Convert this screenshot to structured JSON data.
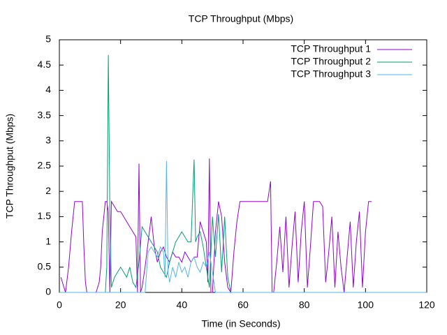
{
  "chart_data": {
    "type": "line",
    "title": "TCP Throughput (Mbps)",
    "x_label": "Time (in Seconds)",
    "y_label": "TCP Throughput (Mbps)",
    "xlim": [
      0,
      120
    ],
    "ylim": [
      0,
      5
    ],
    "xticks": [
      0,
      20,
      40,
      60,
      80,
      100,
      120
    ],
    "yticks": [
      0,
      0.5,
      1,
      1.5,
      2,
      2.5,
      3,
      3.5,
      4,
      4.5,
      5
    ],
    "legend": "upper-right",
    "series": [
      {
        "name": "TCP Throughput 1",
        "color": "#9400d3",
        "x": [
          0.5,
          1,
          1.5,
          2,
          3,
          4,
          5,
          6,
          7,
          7.5,
          8,
          8.5,
          9,
          10,
          11,
          12,
          13,
          13.5,
          14,
          15,
          15.5,
          16,
          16.5,
          17,
          18,
          19,
          20,
          21,
          22,
          23,
          24,
          25,
          25.5,
          26,
          26.5,
          27,
          28,
          29,
          30,
          31,
          32,
          33,
          34,
          35,
          36,
          37,
          38,
          39,
          40,
          41,
          42,
          43,
          44,
          45,
          46,
          47,
          48,
          48.5,
          49,
          49.5,
          50,
          51,
          52,
          53,
          54,
          55,
          56,
          57,
          58,
          59,
          60,
          62,
          64,
          66,
          68,
          69,
          69.5,
          70,
          71,
          72,
          73,
          74,
          75,
          76,
          77,
          78,
          79,
          80,
          81,
          82,
          83,
          84,
          85,
          86,
          87,
          88,
          89,
          90,
          91,
          92,
          93,
          94,
          95,
          96,
          97,
          98,
          99,
          100,
          101,
          102
        ],
        "values": [
          0.3,
          0.2,
          0.1,
          0,
          0.5,
          1.2,
          1.8,
          1.8,
          1.8,
          1.8,
          0.9,
          0.2,
          0,
          0,
          0,
          0,
          0.2,
          0.5,
          1.2,
          1.8,
          1.8,
          1.6,
          0,
          1.8,
          1.7,
          1.6,
          1.6,
          1.5,
          1.4,
          1.3,
          1.2,
          1.1,
          0,
          2.55,
          0,
          0.1,
          0.5,
          1.0,
          1.5,
          0.9,
          0.6,
          0.8,
          0.9,
          0.7,
          0.6,
          0.8,
          0.7,
          0.7,
          0.6,
          0.8,
          0.7,
          0.6,
          0.7,
          0.7,
          1.4,
          1.2,
          1.0,
          0.2,
          2.65,
          0,
          0,
          1.2,
          1.8,
          1.5,
          0.6,
          0.1,
          0,
          0.8,
          1.4,
          1.8,
          1.8,
          1.8,
          1.8,
          1.8,
          1.8,
          2.2,
          0,
          0,
          0.6,
          1.3,
          0.4,
          1.5,
          0.1,
          0.9,
          1.6,
          0.2,
          1.2,
          1.8,
          0.1,
          0.9,
          1.8,
          1.8,
          1.8,
          1.7,
          0.2,
          0.8,
          1.5,
          0.1,
          1.2,
          0.5,
          0,
          0.7,
          1.4,
          0.1,
          1.0,
          1.6,
          0.1,
          1.2,
          1.8,
          1.8
        ]
      },
      {
        "name": "TCP Throughput 2",
        "color": "#009e73",
        "x": [
          0,
          15,
          15.5,
          16,
          16.5,
          17,
          18,
          19,
          20,
          21,
          22,
          23,
          24,
          25,
          26,
          27,
          28,
          29,
          30,
          31,
          32,
          33,
          34,
          35,
          36,
          37,
          38,
          39,
          40,
          41,
          42,
          43,
          44,
          44.5,
          45,
          46,
          47,
          48,
          49,
          50,
          51,
          52,
          53,
          54,
          55,
          56,
          58,
          120
        ],
        "values": [
          0,
          0,
          0.5,
          4.7,
          1.6,
          0.1,
          0.3,
          0.4,
          0.5,
          0.4,
          0.3,
          0.5,
          0.2,
          0.1,
          0.6,
          1.3,
          1.2,
          1.1,
          1.0,
          0.9,
          0.8,
          0.5,
          0.4,
          0.3,
          0.6,
          0.8,
          1.0,
          1.1,
          1.2,
          1.1,
          1.0,
          1.0,
          2.63,
          1.0,
          1.1,
          1.2,
          0.9,
          0.5,
          0.1,
          1.5,
          0.7,
          1.55,
          0.4,
          1.5,
          0.3,
          0,
          0,
          0
        ]
      },
      {
        "name": "TCP Throughput 3",
        "color": "#56b4e9",
        "x": [
          0,
          28,
          29,
          30,
          31,
          32,
          33,
          34,
          34.5,
          35,
          35.5,
          36,
          37,
          38,
          39,
          40,
          41,
          42,
          43,
          44,
          45,
          46,
          47,
          48,
          49,
          50,
          51,
          120
        ],
        "values": [
          0,
          0,
          0.8,
          0.9,
          0.8,
          0.7,
          0.9,
          0.8,
          0.3,
          2.6,
          0.4,
          0.2,
          0.5,
          0.3,
          0.6,
          0.4,
          0.5,
          0.3,
          0.6,
          0.7,
          0.5,
          0.4,
          0.6,
          0.5,
          0.8,
          0.4,
          0,
          0
        ]
      }
    ]
  }
}
